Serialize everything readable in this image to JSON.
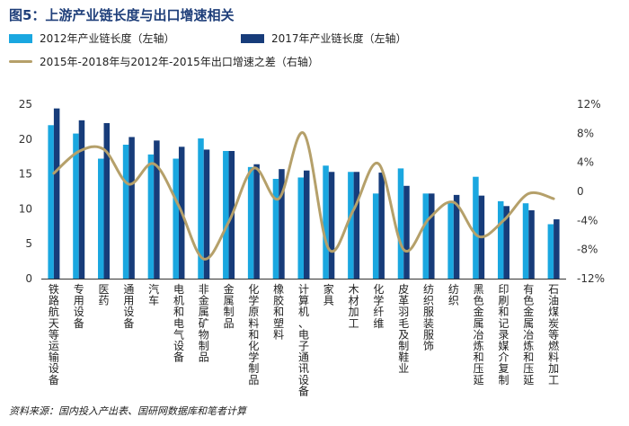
{
  "title": "图5：上游产业链长度与出口增速相关",
  "source": "资料来源：国内投入产出表、国研网数据库和笔者计算",
  "chart_data": {
    "type": "bar",
    "categories": [
      "铁路航天等运输设备",
      "专用设备",
      "医药",
      "通用设备",
      "汽车",
      "电机和电气设备",
      "非金属矿物制品",
      "金属制品",
      "化学原料和化学制品",
      "橡胶和塑料",
      "计算机、电子通讯设备",
      "家具",
      "木材加工",
      "化学纤维",
      "皮革羽毛及制鞋业",
      "纺织服装服饰",
      "纺织",
      "黑色金属冶炼和压延",
      "印刷和记录媒介复制",
      "有色金属冶炼和压延",
      "石油煤炭等燃料加工"
    ],
    "series": [
      {
        "name": "2012年产业链长度（左轴）",
        "axis": "left",
        "color": "#1aa7e0",
        "values": [
          22.0,
          20.8,
          17.2,
          19.2,
          17.8,
          17.2,
          20.1,
          18.3,
          16.0,
          14.3,
          14.5,
          16.2,
          15.3,
          12.2,
          15.8,
          12.2,
          11.0,
          14.6,
          11.1,
          10.8,
          7.8
        ]
      },
      {
        "name": "2017年产业链长度（左轴）",
        "axis": "left",
        "color": "#173c7a",
        "values": [
          24.4,
          22.7,
          22.3,
          20.3,
          19.8,
          18.9,
          18.5,
          18.3,
          16.4,
          15.7,
          15.5,
          15.3,
          15.3,
          15.2,
          13.3,
          12.2,
          12.0,
          11.9,
          10.4,
          9.8,
          8.5
        ]
      },
      {
        "name": "2015年-2018年与2012年-2015年出口增速之差（右轴）",
        "axis": "right",
        "color": "#b5a06a",
        "values": [
          2.5,
          5.5,
          5.8,
          1.0,
          3.8,
          -2.0,
          -9.3,
          -4.2,
          3.2,
          -1.0,
          8.0,
          -7.9,
          -2.5,
          3.8,
          -8.0,
          -3.8,
          -1.5,
          -6.2,
          -4.0,
          -0.3,
          -1.0
        ]
      }
    ],
    "left_axis": {
      "ylim": [
        0,
        25
      ],
      "ticks": [
        "0",
        "5",
        "10",
        "15",
        "20",
        "25"
      ]
    },
    "right_axis": {
      "ylim": [
        -12,
        12
      ],
      "ticks": [
        "-12%",
        "-8%",
        "-4%",
        "0",
        "4%",
        "8%",
        "12%"
      ]
    },
    "legend": "top"
  }
}
